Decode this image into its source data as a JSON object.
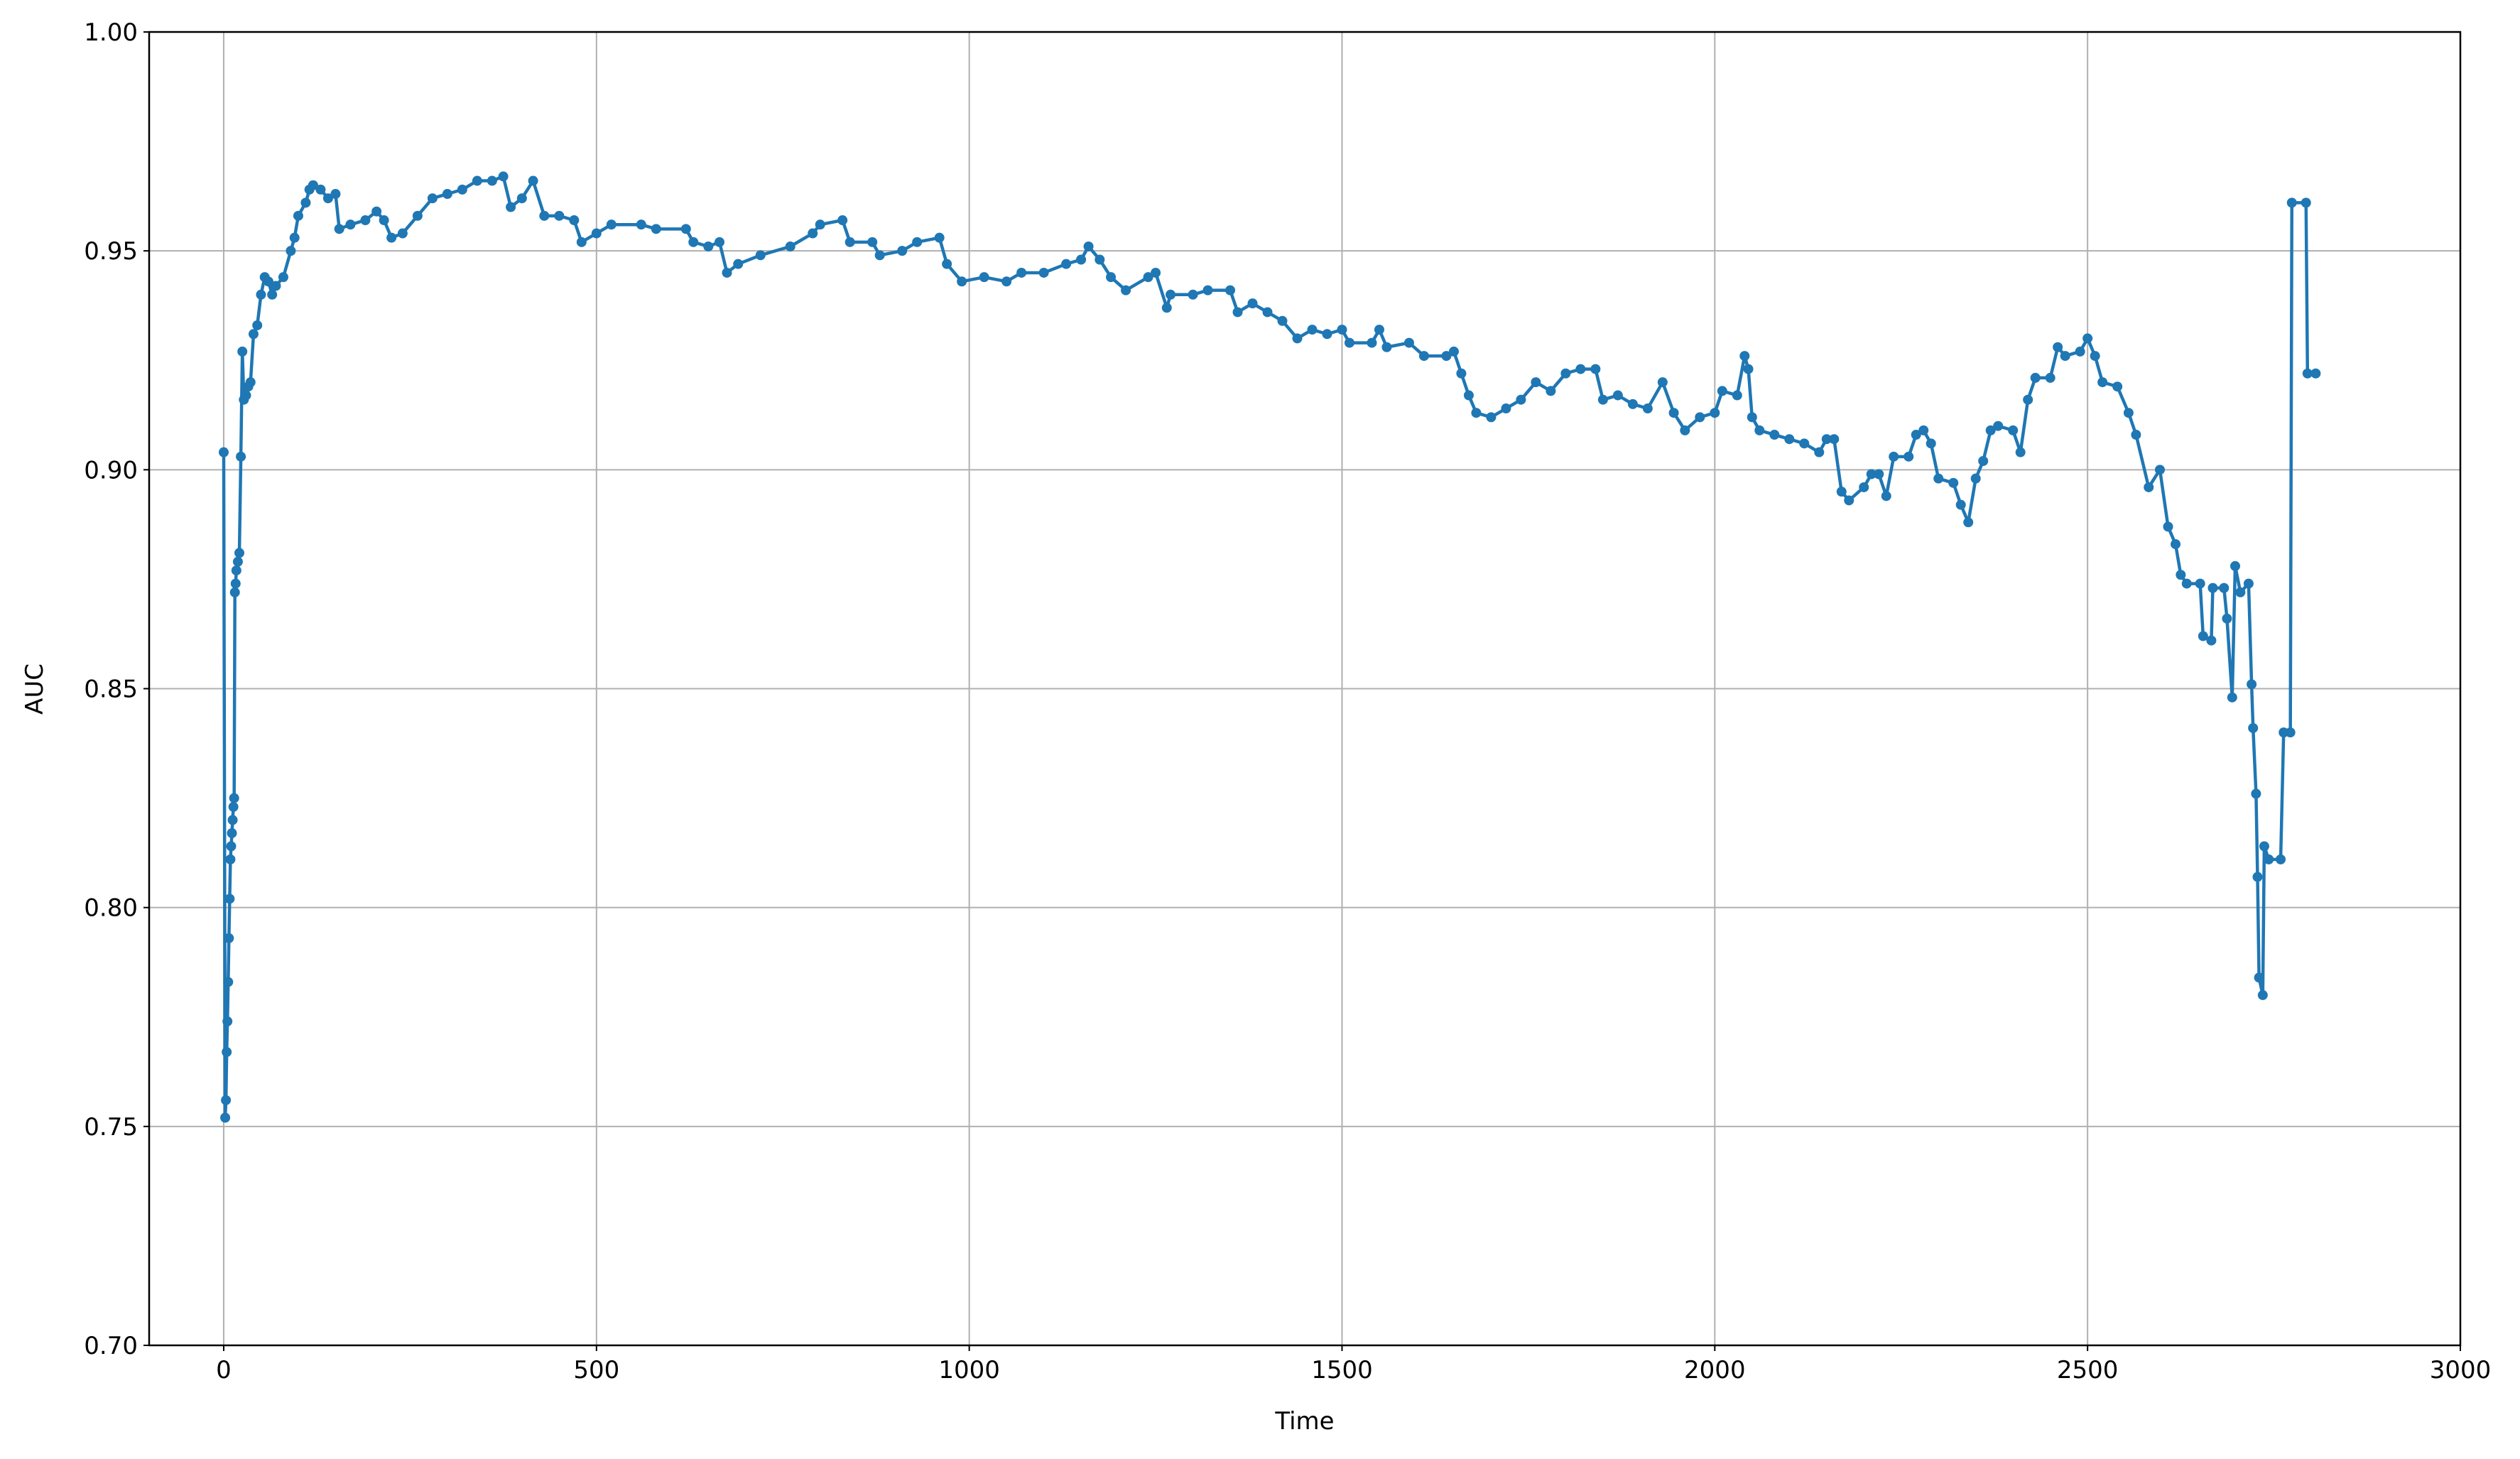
{
  "chart_data": {
    "type": "line",
    "xlabel": "Time",
    "ylabel": "AUC",
    "color": "#1f77b4",
    "grid": true,
    "markers": true,
    "xlim": [
      -100,
      3000
    ],
    "xticks": [
      0,
      500,
      1000,
      1500,
      2000,
      2500,
      3000
    ],
    "ylim": [
      0.7,
      1.0
    ],
    "yticks": [
      {
        "value": 0.7,
        "label": "0.70"
      },
      {
        "value": 0.75,
        "label": "0.75"
      },
      {
        "value": 0.8,
        "label": "0.80"
      },
      {
        "value": 0.85,
        "label": "0.85"
      },
      {
        "value": 0.9,
        "label": "0.90"
      },
      {
        "value": 0.95,
        "label": "0.95"
      },
      {
        "value": 1.0,
        "label": "1.00"
      }
    ],
    "x": [
      0,
      2,
      3,
      4,
      5,
      6,
      7,
      8,
      9,
      10,
      11,
      12,
      13,
      14,
      15,
      16,
      17,
      19,
      21,
      23,
      25,
      27,
      30,
      33,
      36,
      40,
      45,
      50,
      55,
      60,
      65,
      70,
      80,
      90,
      95,
      100,
      110,
      115,
      120,
      130,
      140,
      150,
      155,
      170,
      190,
      205,
      215,
      225,
      240,
      260,
      280,
      300,
      320,
      340,
      360,
      375,
      385,
      400,
      415,
      430,
      450,
      470,
      480,
      500,
      520,
      560,
      580,
      620,
      630,
      650,
      665,
      675,
      690,
      720,
      760,
      790,
      800,
      830,
      840,
      870,
      880,
      910,
      930,
      960,
      970,
      990,
      1020,
      1050,
      1070,
      1100,
      1130,
      1150,
      1160,
      1175,
      1190,
      1210,
      1240,
      1250,
      1265,
      1270,
      1300,
      1320,
      1350,
      1360,
      1380,
      1400,
      1420,
      1440,
      1460,
      1480,
      1500,
      1510,
      1540,
      1550,
      1560,
      1590,
      1610,
      1640,
      1650,
      1660,
      1670,
      1680,
      1700,
      1720,
      1740,
      1760,
      1780,
      1800,
      1820,
      1840,
      1850,
      1870,
      1890,
      1910,
      1930,
      1945,
      1960,
      1980,
      2000,
      2010,
      2030,
      2040,
      2045,
      2050,
      2060,
      2080,
      2100,
      2120,
      2140,
      2150,
      2160,
      2170,
      2180,
      2200,
      2210,
      2220,
      2230,
      2240,
      2260,
      2270,
      2280,
      2290,
      2300,
      2320,
      2330,
      2340,
      2350,
      2360,
      2370,
      2380,
      2400,
      2410,
      2420,
      2430,
      2450,
      2460,
      2470,
      2490,
      2500,
      2510,
      2520,
      2540,
      2555,
      2565,
      2582,
      2597,
      2608,
      2618,
      2625,
      2633,
      2651,
      2655,
      2666,
      2668,
      2683,
      2687,
      2694,
      2698,
      2705,
      2716,
      2720,
      2722,
      2726,
      2728,
      2730,
      2735,
      2737,
      2743,
      2759,
      2763,
      2772,
      2774,
      2793,
      2795,
      2806
    ],
    "values": [
      0.904,
      0.752,
      0.756,
      0.767,
      0.774,
      0.783,
      0.793,
      0.802,
      0.811,
      0.814,
      0.817,
      0.82,
      0.823,
      0.825,
      0.872,
      0.874,
      0.877,
      0.879,
      0.881,
      0.903,
      0.927,
      0.916,
      0.917,
      0.919,
      0.92,
      0.931,
      0.933,
      0.94,
      0.944,
      0.943,
      0.94,
      0.942,
      0.944,
      0.95,
      0.953,
      0.958,
      0.961,
      0.964,
      0.965,
      0.964,
      0.962,
      0.963,
      0.955,
      0.956,
      0.957,
      0.959,
      0.957,
      0.953,
      0.954,
      0.958,
      0.962,
      0.963,
      0.964,
      0.966,
      0.966,
      0.967,
      0.96,
      0.962,
      0.966,
      0.958,
      0.958,
      0.957,
      0.952,
      0.954,
      0.956,
      0.956,
      0.955,
      0.955,
      0.952,
      0.951,
      0.952,
      0.945,
      0.947,
      0.949,
      0.951,
      0.954,
      0.956,
      0.957,
      0.952,
      0.952,
      0.949,
      0.95,
      0.952,
      0.953,
      0.947,
      0.943,
      0.944,
      0.943,
      0.945,
      0.945,
      0.947,
      0.948,
      0.951,
      0.948,
      0.944,
      0.941,
      0.944,
      0.945,
      0.937,
      0.94,
      0.94,
      0.941,
      0.941,
      0.936,
      0.938,
      0.936,
      0.934,
      0.93,
      0.932,
      0.931,
      0.932,
      0.929,
      0.929,
      0.932,
      0.928,
      0.929,
      0.926,
      0.926,
      0.927,
      0.922,
      0.917,
      0.913,
      0.912,
      0.914,
      0.916,
      0.92,
      0.918,
      0.922,
      0.923,
      0.923,
      0.916,
      0.917,
      0.915,
      0.914,
      0.92,
      0.913,
      0.909,
      0.912,
      0.913,
      0.918,
      0.917,
      0.926,
      0.923,
      0.912,
      0.909,
      0.908,
      0.907,
      0.906,
      0.904,
      0.907,
      0.907,
      0.895,
      0.893,
      0.896,
      0.899,
      0.899,
      0.894,
      0.903,
      0.903,
      0.908,
      0.909,
      0.906,
      0.898,
      0.897,
      0.892,
      0.888,
      0.898,
      0.902,
      0.909,
      0.91,
      0.909,
      0.904,
      0.916,
      0.921,
      0.921,
      0.928,
      0.926,
      0.927,
      0.93,
      0.926,
      0.92,
      0.919,
      0.913,
      0.908,
      0.896,
      0.9,
      0.887,
      0.883,
      0.876,
      0.874,
      0.874,
      0.862,
      0.861,
      0.873,
      0.873,
      0.866,
      0.848,
      0.878,
      0.872,
      0.874,
      0.851,
      0.841,
      0.826,
      0.807,
      0.784,
      0.78,
      0.814,
      0.811,
      0.811,
      0.84,
      0.84,
      0.961,
      0.961,
      0.922,
      0.922
    ]
  }
}
